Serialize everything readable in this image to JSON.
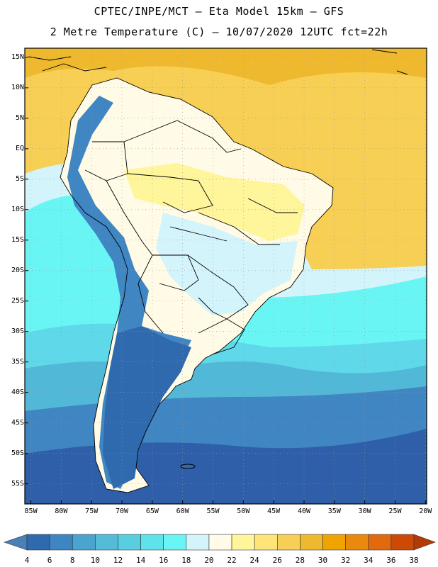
{
  "title": {
    "line1": "CPTEC/INPE/MCT –  Eta Model 15km – GFS",
    "line2": "2 Metre Temperature (C) – 10/07/2020 12UTC fct=22h"
  },
  "lat_labels": [
    "15N",
    "10N",
    "5N",
    "EQ",
    "5S",
    "10S",
    "15S",
    "20S",
    "25S",
    "30S",
    "35S",
    "40S",
    "45S",
    "50S",
    "55S"
  ],
  "lon_labels": [
    "85W",
    "80W",
    "75W",
    "70W",
    "65W",
    "60W",
    "55W",
    "50W",
    "45W",
    "40W",
    "35W",
    "30W",
    "25W",
    "20W"
  ],
  "colorbar": {
    "labels": [
      "4",
      "6",
      "8",
      "10",
      "12",
      "14",
      "16",
      "18",
      "20",
      "22",
      "24",
      "26",
      "28",
      "30",
      "32",
      "34",
      "36",
      "38"
    ],
    "colors": [
      "#4a7fb8",
      "#2f6aae",
      "#3d86c2",
      "#49a4d0",
      "#54bcd9",
      "#58cfe0",
      "#5fe3ea",
      "#6af5f5",
      "#d4f4fb",
      "#fffbe6",
      "#fff59a",
      "#ffe47a",
      "#f7cf55",
      "#eeb92e",
      "#f0a400",
      "#e98a0e",
      "#e2690e",
      "#cc4a06",
      "#b23a05"
    ]
  },
  "map_colors": {
    "ocean_far_south": "#2f5fa8",
    "ocean_south": "#3f86c3",
    "ocean_mid": "#52b8d8",
    "ocean_warm": "#5fd9ea",
    "ocean_cyan": "#6af5f5",
    "ocean_light": "#d4f4fb",
    "ocean_tropical": "#f7cf55",
    "ocean_hot": "#eeb92e",
    "land_hot": "#fffbe6",
    "land_warm": "#fff59a",
    "land_cool": "#d4f4fb",
    "andes": "#3f86c3",
    "patagonia": "#2f6aae",
    "border": "#000000",
    "grid": "#9a9a9a"
  }
}
